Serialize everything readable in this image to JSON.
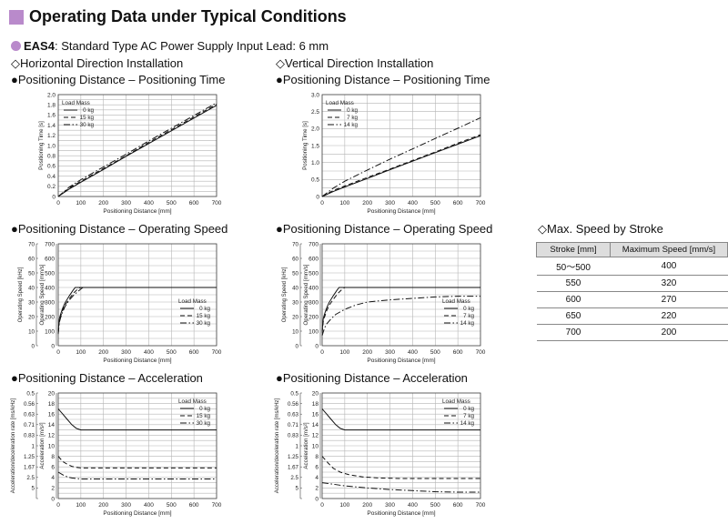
{
  "page": {
    "title": "Operating Data under Typical Conditions",
    "subtitle_bold": "EAS4",
    "subtitle_rest": ": Standard Type  AC Power Supply Input  Lead: 6 mm",
    "horizontal_header": "◇Horizontal Direction Installation",
    "vertical_header": "◇Vertical Direction Installation",
    "maxspeed_header": "◇Max. Speed by Stroke"
  },
  "chart_titles": {
    "h_time": "●Positioning Distance – Positioning Time",
    "v_time": "●Positioning Distance – Positioning Time",
    "h_speed": "●Positioning Distance – Operating Speed",
    "v_speed": "●Positioning Distance – Operating Speed",
    "h_acc": "●Positioning Distance – Acceleration",
    "v_acc": "●Positioning Distance – Acceleration"
  },
  "max_speed_table": {
    "headers": [
      "Stroke [mm]",
      "Maximum Speed [mm/s]"
    ],
    "rows": [
      [
        "50～500",
        "400"
      ],
      [
        "550",
        "320"
      ],
      [
        "600",
        "270"
      ],
      [
        "650",
        "220"
      ],
      [
        "700",
        "200"
      ]
    ]
  },
  "chart_data": [
    {
      "id": "h_time",
      "type": "line",
      "xlabel": "Positioning Distance [mm]",
      "ylabel": "Positioning Time [s]",
      "xlim": [
        0,
        700
      ],
      "ylim": [
        0,
        2.0
      ],
      "xticks": [
        "0",
        "100",
        "200",
        "300",
        "400",
        "500",
        "600",
        "700"
      ],
      "yticks": [
        "0",
        "0.2",
        "0.4",
        "0.6",
        "0.8",
        "1.0",
        "1.2",
        "1.4",
        "1.6",
        "1.8",
        "2.0"
      ],
      "legend_title": "Load Mass",
      "series": [
        {
          "name": "0 kg",
          "style": "solid",
          "points": [
            [
              0,
              0
            ],
            [
              50,
              0.15
            ],
            [
              100,
              0.28
            ],
            [
              200,
              0.53
            ],
            [
              300,
              0.79
            ],
            [
              400,
              1.04
            ],
            [
              500,
              1.29
            ],
            [
              600,
              1.54
            ],
            [
              700,
              1.79
            ]
          ]
        },
        {
          "name": "15 kg",
          "style": "dash",
          "points": [
            [
              0,
              0
            ],
            [
              50,
              0.17
            ],
            [
              100,
              0.3
            ],
            [
              200,
              0.55
            ],
            [
              300,
              0.8
            ],
            [
              400,
              1.06
            ],
            [
              500,
              1.31
            ],
            [
              600,
              1.56
            ],
            [
              700,
              1.81
            ]
          ]
        },
        {
          "name": "30 kg",
          "style": "dashdot",
          "points": [
            [
              0,
              0
            ],
            [
              50,
              0.19
            ],
            [
              100,
              0.33
            ],
            [
              200,
              0.58
            ],
            [
              300,
              0.83
            ],
            [
              400,
              1.09
            ],
            [
              500,
              1.34
            ],
            [
              600,
              1.59
            ],
            [
              700,
              1.84
            ]
          ]
        }
      ]
    },
    {
      "id": "v_time",
      "type": "line",
      "xlabel": "Positioning Distance [mm]",
      "ylabel": "Positioning Time [s]",
      "xlim": [
        0,
        700
      ],
      "ylim": [
        0,
        3.0
      ],
      "xticks": [
        "0",
        "100",
        "200",
        "300",
        "400",
        "500",
        "600",
        "700"
      ],
      "yticks": [
        "0",
        "0.5",
        "1.0",
        "1.5",
        "2.0",
        "2.5",
        "3.0"
      ],
      "legend_title": "Load Mass",
      "series": [
        {
          "name": "0 kg",
          "style": "solid",
          "points": [
            [
              0,
              0
            ],
            [
              50,
              0.15
            ],
            [
              100,
              0.28
            ],
            [
              200,
              0.53
            ],
            [
              300,
              0.79
            ],
            [
              400,
              1.04
            ],
            [
              500,
              1.29
            ],
            [
              600,
              1.54
            ],
            [
              700,
              1.79
            ]
          ]
        },
        {
          "name": "7 kg",
          "style": "dash",
          "points": [
            [
              0,
              0
            ],
            [
              50,
              0.18
            ],
            [
              100,
              0.31
            ],
            [
              200,
              0.56
            ],
            [
              300,
              0.81
            ],
            [
              400,
              1.06
            ],
            [
              500,
              1.31
            ],
            [
              600,
              1.57
            ],
            [
              700,
              1.82
            ]
          ]
        },
        {
          "name": "14 kg",
          "style": "dashdot",
          "points": [
            [
              0,
              0
            ],
            [
              50,
              0.25
            ],
            [
              100,
              0.45
            ],
            [
              200,
              0.78
            ],
            [
              300,
              1.1
            ],
            [
              400,
              1.4
            ],
            [
              500,
              1.71
            ],
            [
              600,
              2.01
            ],
            [
              700,
              2.32
            ]
          ]
        }
      ]
    },
    {
      "id": "h_speed",
      "type": "line",
      "xlabel": "Positioning Distance [mm]",
      "ylabel": "Operating Speed [mm/s]",
      "ylabel2": "Operating Speed [kHz]",
      "xlim": [
        0,
        700
      ],
      "ylim": [
        0,
        700
      ],
      "ylim2": [
        0,
        70
      ],
      "xticks": [
        "0",
        "100",
        "200",
        "300",
        "400",
        "500",
        "600",
        "700"
      ],
      "yticks": [
        "0",
        "100",
        "200",
        "300",
        "400",
        "500",
        "600",
        "700"
      ],
      "yticks2": [
        "0",
        "10",
        "20",
        "30",
        "40",
        "50",
        "60",
        "70"
      ],
      "legend_title": "Load Mass",
      "series": [
        {
          "name": "0 kg",
          "style": "solid",
          "points": [
            [
              0,
              100
            ],
            [
              5,
              185
            ],
            [
              10,
              215
            ],
            [
              20,
              260
            ],
            [
              30,
              295
            ],
            [
              50,
              345
            ],
            [
              65,
              380
            ],
            [
              75,
              400
            ],
            [
              700,
              400
            ]
          ]
        },
        {
          "name": "15 kg",
          "style": "dash",
          "points": [
            [
              0,
              90
            ],
            [
              5,
              170
            ],
            [
              10,
              200
            ],
            [
              20,
              245
            ],
            [
              30,
              280
            ],
            [
              50,
              325
            ],
            [
              70,
              365
            ],
            [
              90,
              395
            ],
            [
              100,
              400
            ],
            [
              700,
              400
            ]
          ]
        },
        {
          "name": "30 kg",
          "style": "dashdot",
          "points": [
            [
              0,
              80
            ],
            [
              5,
              160
            ],
            [
              10,
              190
            ],
            [
              20,
              235
            ],
            [
              30,
              270
            ],
            [
              50,
              315
            ],
            [
              70,
              350
            ],
            [
              100,
              390
            ],
            [
              110,
              400
            ],
            [
              700,
              400
            ]
          ]
        }
      ]
    },
    {
      "id": "v_speed",
      "type": "line",
      "xlabel": "Positioning Distance [mm]",
      "ylabel": "Operating Speed [mm/s]",
      "ylabel2": "Operating Speed [kHz]",
      "xlim": [
        0,
        700
      ],
      "ylim": [
        0,
        700
      ],
      "ylim2": [
        0,
        70
      ],
      "xticks": [
        "0",
        "100",
        "200",
        "300",
        "400",
        "500",
        "600",
        "700"
      ],
      "yticks": [
        "0",
        "100",
        "200",
        "300",
        "400",
        "500",
        "600",
        "700"
      ],
      "yticks2": [
        "0",
        "10",
        "20",
        "30",
        "40",
        "50",
        "60",
        "70"
      ],
      "legend_title": "Load Mass",
      "series": [
        {
          "name": "0 kg",
          "style": "solid",
          "points": [
            [
              0,
              100
            ],
            [
              5,
              185
            ],
            [
              10,
              215
            ],
            [
              20,
              260
            ],
            [
              30,
              295
            ],
            [
              50,
              345
            ],
            [
              65,
              380
            ],
            [
              75,
              400
            ],
            [
              700,
              400
            ]
          ]
        },
        {
          "name": "7 kg",
          "style": "dash",
          "points": [
            [
              0,
              90
            ],
            [
              5,
              165
            ],
            [
              10,
              195
            ],
            [
              20,
              240
            ],
            [
              30,
              275
            ],
            [
              50,
              320
            ],
            [
              70,
              360
            ],
            [
              90,
              390
            ],
            [
              100,
              400
            ],
            [
              700,
              400
            ]
          ]
        },
        {
          "name": "14 kg",
          "style": "dashdot",
          "points": [
            [
              0,
              70
            ],
            [
              10,
              120
            ],
            [
              20,
              150
            ],
            [
              40,
              185
            ],
            [
              60,
              215
            ],
            [
              100,
              250
            ],
            [
              150,
              280
            ],
            [
              200,
              300
            ],
            [
              300,
              315
            ],
            [
              400,
              325
            ],
            [
              500,
              335
            ],
            [
              600,
              340
            ],
            [
              700,
              340
            ]
          ]
        }
      ]
    },
    {
      "id": "h_acc",
      "type": "line",
      "xlabel": "Positioning Distance [mm]",
      "ylabel": "Acceleration [m/s²]",
      "ylabel2": "Acceleration/deceleration rate [ms/kHz]",
      "xlim": [
        0,
        700
      ],
      "ylim": [
        0,
        20
      ],
      "xticks": [
        "0",
        "100",
        "200",
        "300",
        "400",
        "500",
        "600",
        "700"
      ],
      "yticks": [
        "0",
        "2",
        "4",
        "6",
        "8",
        "10",
        "12",
        "14",
        "16",
        "18",
        "20"
      ],
      "yticks2": [
        "",
        "5",
        "2.5",
        "1.67",
        "1.25",
        "1",
        "0.83",
        "0.71",
        "0.63",
        "0.56",
        "0.5"
      ],
      "legend_title": "Load Mass",
      "series": [
        {
          "name": "0 kg",
          "style": "solid",
          "points": [
            [
              0,
              17
            ],
            [
              20,
              16
            ],
            [
              40,
              15
            ],
            [
              60,
              14
            ],
            [
              80,
              13.3
            ],
            [
              100,
              13
            ],
            [
              700,
              13
            ]
          ]
        },
        {
          "name": "15 kg",
          "style": "dash",
          "points": [
            [
              0,
              8
            ],
            [
              20,
              7
            ],
            [
              40,
              6.5
            ],
            [
              60,
              6.1
            ],
            [
              80,
              5.9
            ],
            [
              100,
              5.8
            ],
            [
              700,
              5.8
            ]
          ]
        },
        {
          "name": "30 kg",
          "style": "dashdot",
          "points": [
            [
              0,
              5
            ],
            [
              20,
              4.5
            ],
            [
              40,
              4.1
            ],
            [
              60,
              3.9
            ],
            [
              80,
              3.8
            ],
            [
              100,
              3.7
            ],
            [
              700,
              3.7
            ]
          ]
        }
      ]
    },
    {
      "id": "v_acc",
      "type": "line",
      "xlabel": "Positioning Distance [mm]",
      "ylabel": "Acceleration [m/s²]",
      "ylabel2": "Acceleration/deceleration rate [ms/kHz]",
      "xlim": [
        0,
        700
      ],
      "ylim": [
        0,
        20
      ],
      "xticks": [
        "0",
        "100",
        "200",
        "300",
        "400",
        "500",
        "600",
        "700"
      ],
      "yticks": [
        "0",
        "2",
        "4",
        "6",
        "8",
        "10",
        "12",
        "14",
        "16",
        "18",
        "20"
      ],
      "yticks2": [
        "",
        "5",
        "2.5",
        "1.67",
        "1.25",
        "1",
        "0.83",
        "0.71",
        "0.63",
        "0.56",
        "0.5"
      ],
      "legend_title": "Load Mass",
      "series": [
        {
          "name": "0 kg",
          "style": "solid",
          "points": [
            [
              0,
              17
            ],
            [
              20,
              16
            ],
            [
              40,
              15
            ],
            [
              60,
              14
            ],
            [
              80,
              13.3
            ],
            [
              100,
              13
            ],
            [
              700,
              13
            ]
          ]
        },
        {
          "name": "7 kg",
          "style": "dash",
          "points": [
            [
              0,
              8
            ],
            [
              25,
              6.8
            ],
            [
              50,
              5.7
            ],
            [
              80,
              5
            ],
            [
              120,
              4.5
            ],
            [
              180,
              4.1
            ],
            [
              250,
              3.9
            ],
            [
              350,
              3.8
            ],
            [
              700,
              3.8
            ]
          ]
        },
        {
          "name": "14 kg",
          "style": "dashdot",
          "points": [
            [
              0,
              3
            ],
            [
              50,
              2.7
            ],
            [
              100,
              2.4
            ],
            [
              200,
              2
            ],
            [
              300,
              1.7
            ],
            [
              400,
              1.5
            ],
            [
              500,
              1.3
            ],
            [
              600,
              1.2
            ],
            [
              700,
              1.2
            ]
          ]
        }
      ]
    }
  ]
}
